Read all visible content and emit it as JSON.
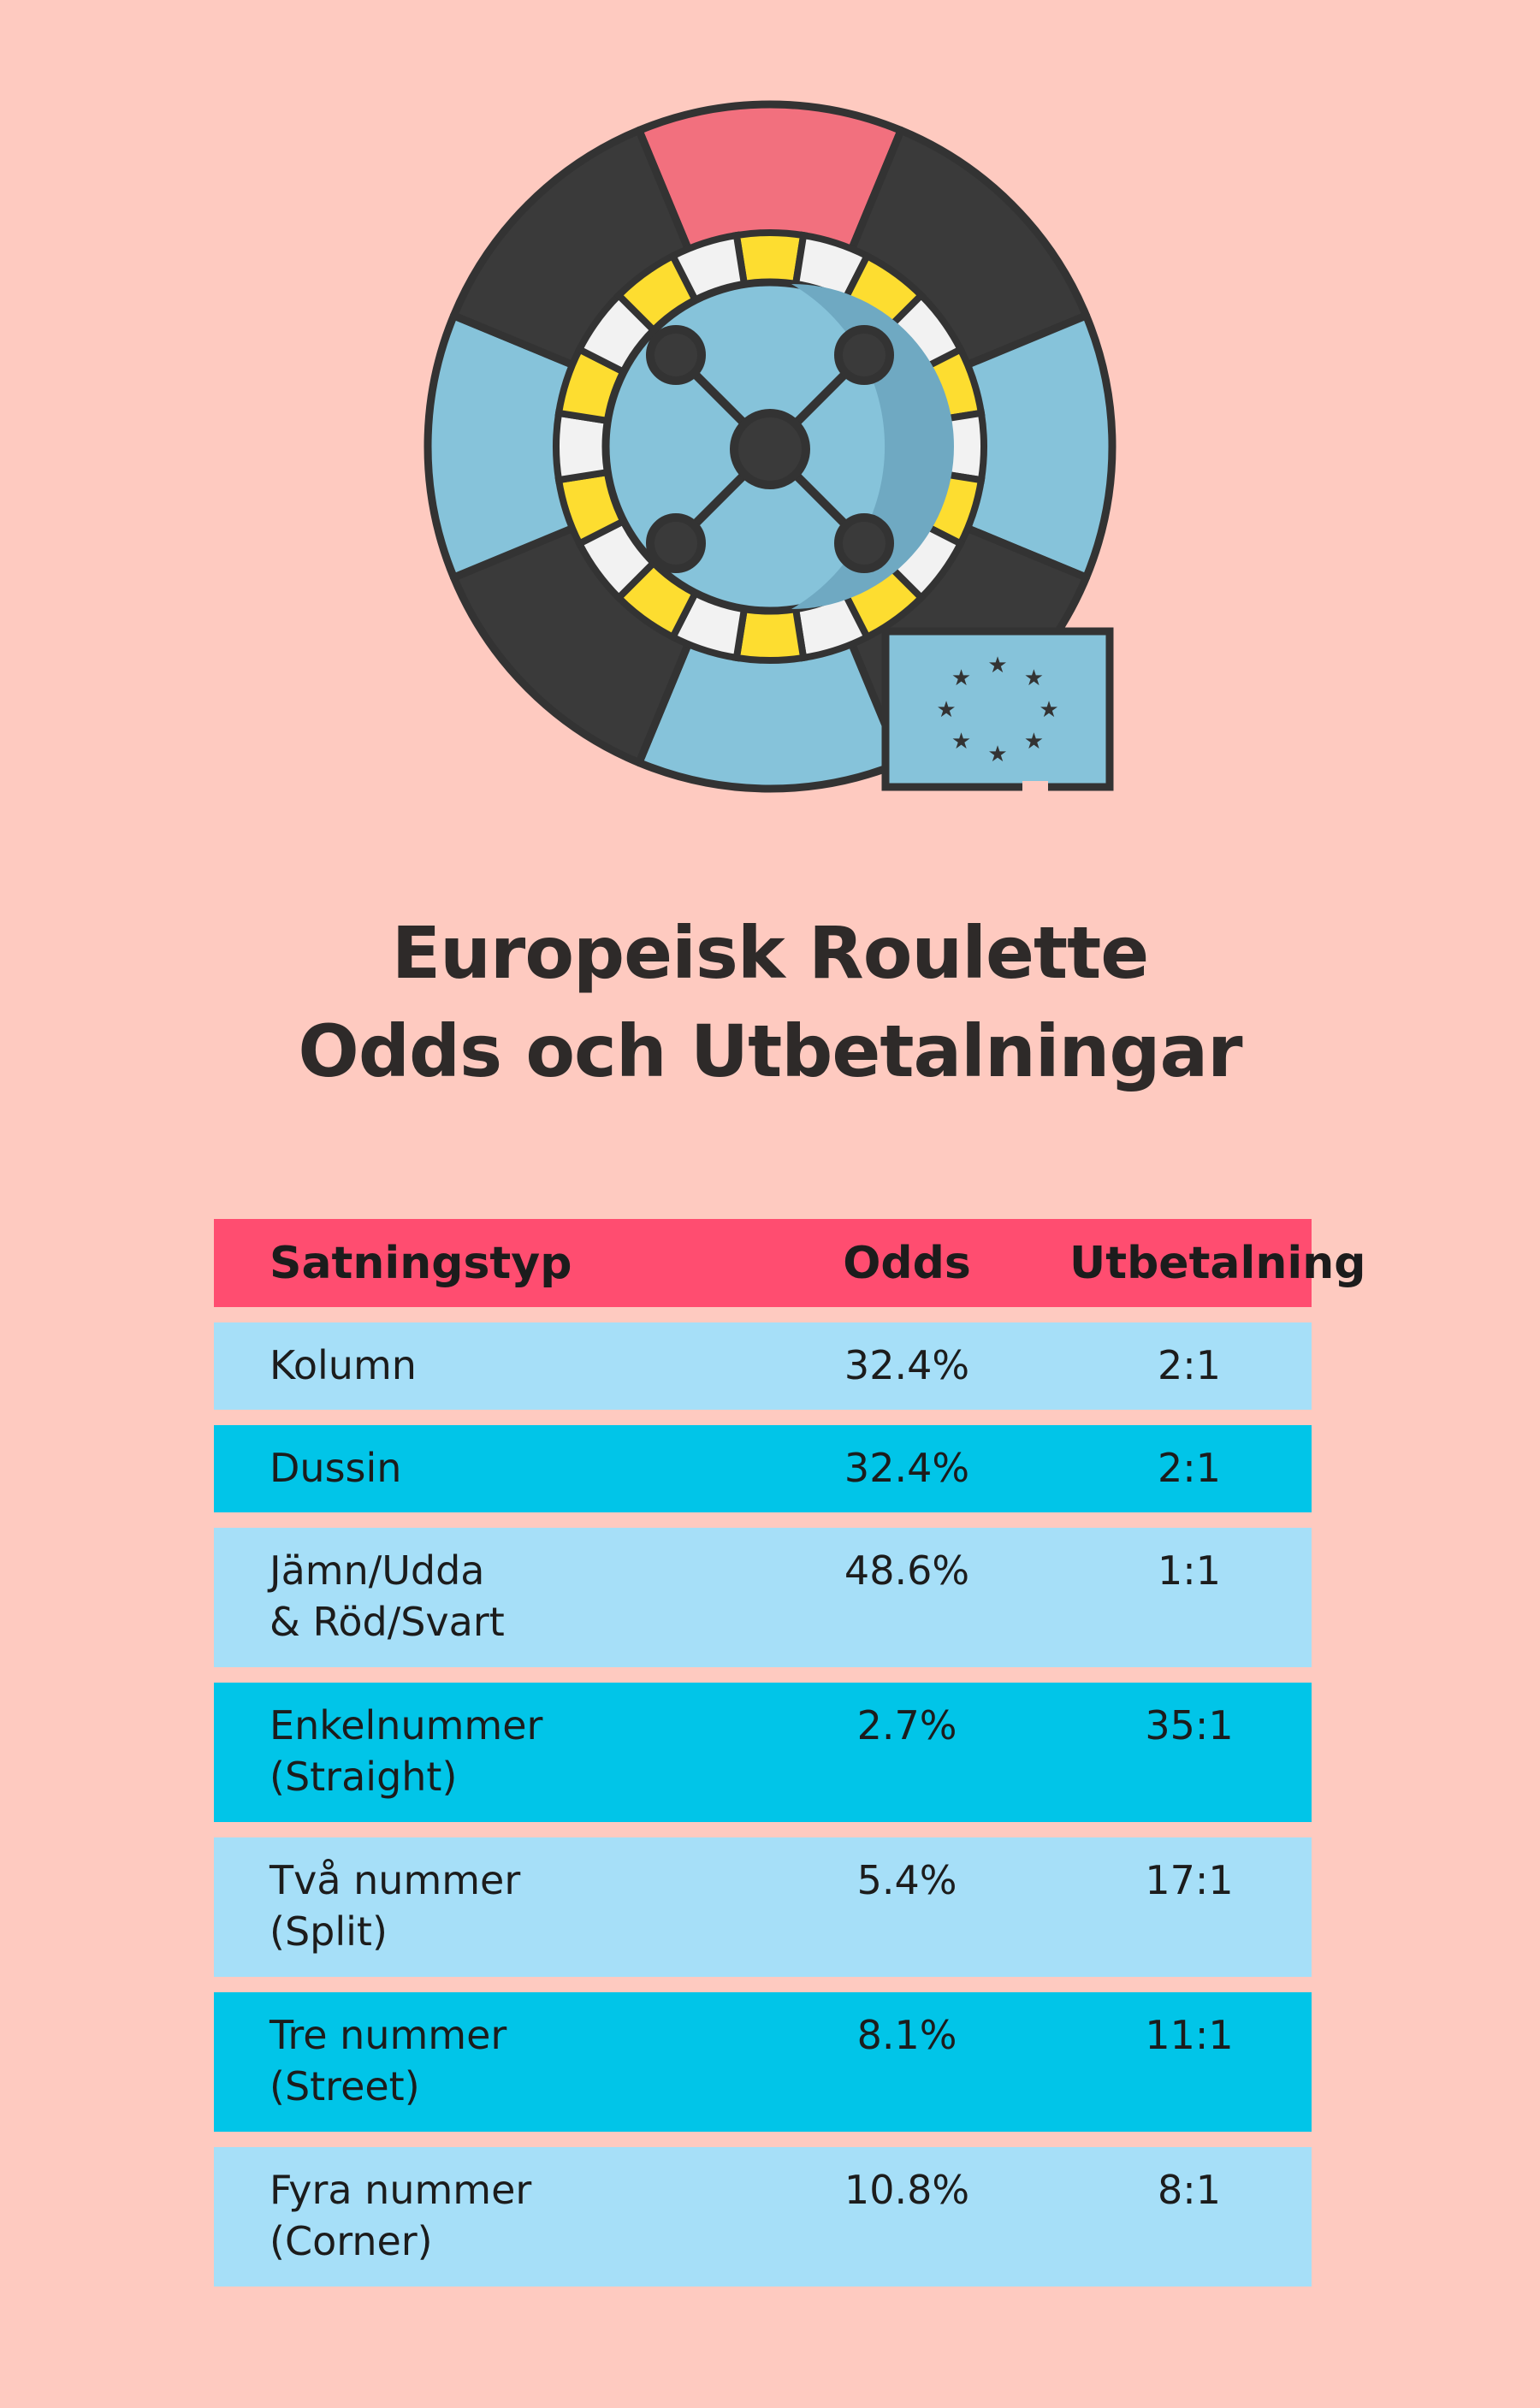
{
  "title": {
    "line1": "Europeisk Roulette",
    "line2": "Odds och Utbetalningar"
  },
  "illustration": {
    "icon": "european-roulette-wheel-icon",
    "flag_icon": "eu-flag-icon",
    "colors": {
      "dark": "#3a3a3a",
      "red": "#f2707e",
      "blue": "#86c3da",
      "yellow": "#fddd30",
      "white": "#f2f2f2",
      "outline": "#333333"
    }
  },
  "table": {
    "headers": [
      "Satningstyp",
      "Odds",
      "Utbetalning"
    ],
    "rows": [
      {
        "type": [
          "Kolumn"
        ],
        "odds": "32.4%",
        "payout": "2:1"
      },
      {
        "type": [
          "Dussin"
        ],
        "odds": "32.4%",
        "payout": "2:1"
      },
      {
        "type": [
          "Jämn/Udda",
          "& Röd/Svart"
        ],
        "odds": "48.6%",
        "payout": "1:1"
      },
      {
        "type": [
          "Enkelnummer",
          "(Straight)"
        ],
        "odds": "2.7%",
        "payout": "35:1"
      },
      {
        "type": [
          "Två nummer",
          "(Split)"
        ],
        "odds": "5.4%",
        "payout": "17:1"
      },
      {
        "type": [
          "Tre nummer",
          "(Street)"
        ],
        "odds": "8.1%",
        "payout": "11:1"
      },
      {
        "type": [
          "Fyra nummer",
          "(Corner)"
        ],
        "odds": "10.8%",
        "payout": "8:1"
      }
    ],
    "colors": {
      "header": "#ff4d70",
      "row_light": "#a6dff8",
      "row_dark": "#01c5e8",
      "background": "#fecac0"
    }
  }
}
